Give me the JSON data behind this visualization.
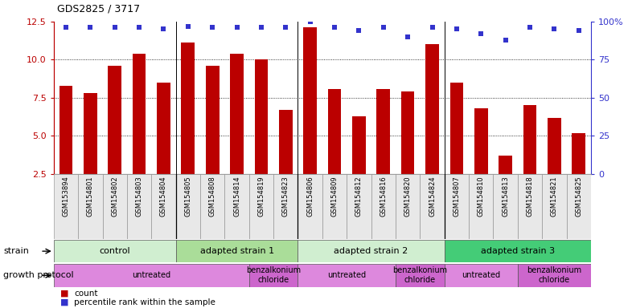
{
  "title": "GDS2825 / 3717",
  "samples": [
    "GSM153894",
    "GSM154801",
    "GSM154802",
    "GSM154803",
    "GSM154804",
    "GSM154805",
    "GSM154808",
    "GSM154814",
    "GSM154819",
    "GSM154823",
    "GSM154806",
    "GSM154809",
    "GSM154812",
    "GSM154816",
    "GSM154820",
    "GSM154824",
    "GSM154807",
    "GSM154810",
    "GSM154813",
    "GSM154818",
    "GSM154821",
    "GSM154825"
  ],
  "bar_values": [
    8.3,
    7.8,
    9.6,
    10.4,
    8.5,
    11.1,
    9.6,
    10.4,
    10.0,
    6.7,
    12.1,
    8.1,
    6.3,
    8.1,
    7.9,
    11.0,
    8.5,
    6.8,
    3.7,
    7.0,
    6.2,
    5.2
  ],
  "percentile_values": [
    96,
    96,
    96,
    96,
    95,
    97,
    96,
    96,
    96,
    96,
    100,
    96,
    94,
    96,
    90,
    96,
    95,
    92,
    88,
    96,
    95,
    94
  ],
  "ylim_left": [
    2.5,
    12.5
  ],
  "ylim_right": [
    0,
    100
  ],
  "yticks_left": [
    2.5,
    5.0,
    7.5,
    10.0,
    12.5
  ],
  "yticks_right": [
    0,
    25,
    50,
    75,
    100
  ],
  "bar_color": "#bb0000",
  "dot_color": "#3333cc",
  "strain_groups": [
    {
      "label": "control",
      "start": 0,
      "end": 4,
      "color": "#cceecc"
    },
    {
      "label": "adapted strain 1",
      "start": 5,
      "end": 9,
      "color": "#99dd99"
    },
    {
      "label": "adapted strain 2",
      "start": 10,
      "end": 15,
      "color": "#cceecc"
    },
    {
      "label": "adapted strain 3",
      "start": 16,
      "end": 21,
      "color": "#44cc77"
    }
  ],
  "protocol_groups": [
    {
      "label": "untreated",
      "start": 0,
      "end": 7,
      "benz": false
    },
    {
      "label": "benzalkonium\nchloride",
      "start": 8,
      "end": 9,
      "benz": true
    },
    {
      "label": "untreated",
      "start": 10,
      "end": 13,
      "benz": false
    },
    {
      "label": "benzalkonium\nchloride",
      "start": 14,
      "end": 15,
      "benz": true
    },
    {
      "label": "untreated",
      "start": 16,
      "end": 18,
      "benz": false
    },
    {
      "label": "benzalkonium\nchloride",
      "start": 19,
      "end": 21,
      "benz": true
    }
  ],
  "protocol_color_untreated": "#dd88dd",
  "protocol_color_benz": "#cc66cc",
  "group_lines": [
    4.5,
    9.5,
    15.5
  ],
  "ytick_grid": [
    5.0,
    7.5,
    10.0
  ],
  "legend_count_label": "count",
  "legend_pct_label": "percentile rank within the sample",
  "strain_row_label": "strain",
  "protocol_row_label": "growth protocol"
}
